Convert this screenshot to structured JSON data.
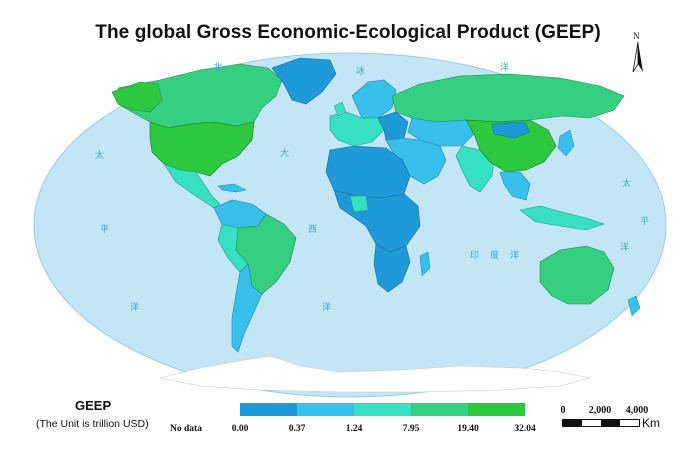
{
  "title": "The global Gross Economic-Ecological Product (GEEP)",
  "north_label": "N",
  "legend": {
    "title": "GEEP",
    "subtitle": "(The Unit is trillion USD)",
    "no_data_label": "No data",
    "colors": [
      "#ffffff",
      "#1e9ad8",
      "#38c0ec",
      "#36e0c0",
      "#35cf82",
      "#2cc83e"
    ],
    "ticks": [
      "0.00",
      "0.37",
      "1.24",
      "7.95",
      "19.40",
      "32.04"
    ]
  },
  "scale": {
    "labels": [
      "0",
      "2,000",
      "4,000"
    ],
    "unit": "Km"
  },
  "ocean_labels": [
    "北",
    "冰",
    "洋",
    "太",
    "大",
    "平",
    "西",
    "洋",
    "洋",
    "印",
    "度",
    "洋",
    "太",
    "平",
    "洋"
  ],
  "colors": {
    "ocean": "#c3e6f7",
    "class_low": "#1e9ad8",
    "class_mid": "#38c0ec",
    "class_upper": "#36e0c0",
    "class_high": "#35cf82",
    "class_top": "#2cc83e",
    "antarctica": "#ffffff"
  }
}
